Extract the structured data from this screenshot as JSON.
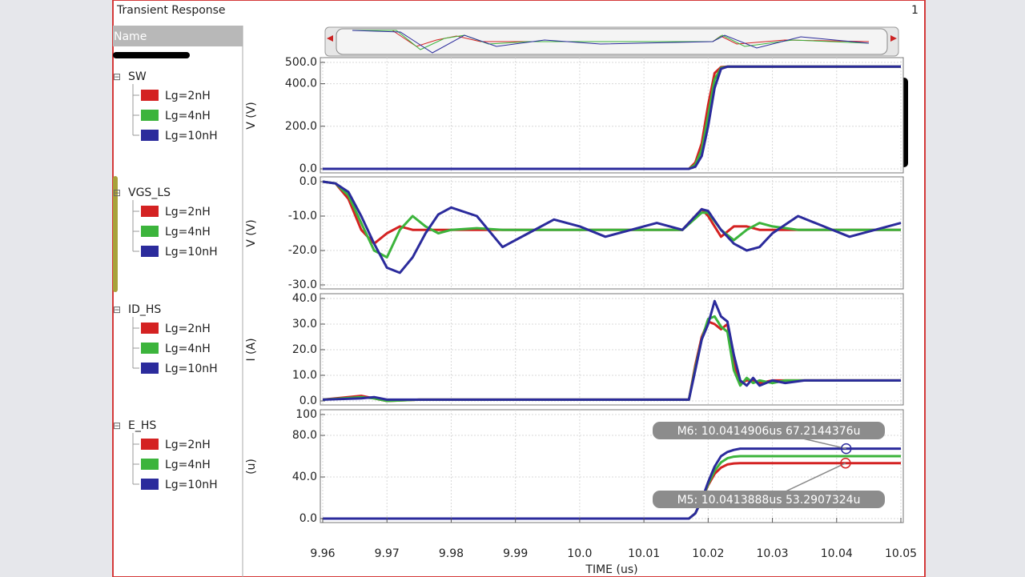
{
  "window": {
    "title": "Transient Response",
    "tab": "1",
    "column_header": "Name"
  },
  "chart_data": [
    {
      "type": "line",
      "signal": "SW",
      "ylabel": "V (V)",
      "ylim": [
        0,
        500
      ],
      "yticks": [
        {
          "value": 0,
          "label": "0.0"
        },
        {
          "value": 200,
          "label": "200.0"
        },
        {
          "value": 400,
          "label": "400.0"
        },
        {
          "value": 500,
          "label": "500.0"
        }
      ],
      "grid": true,
      "x": [
        9.96,
        10.017,
        10.018,
        10.019,
        10.02,
        10.021,
        10.022,
        10.023,
        10.05
      ],
      "series": [
        {
          "name": "Lg=2nH",
          "color": "#d42222",
          "values": [
            0,
            0,
            30,
            120,
            300,
            450,
            478,
            480,
            480
          ]
        },
        {
          "name": "Lg=4nH",
          "color": "#3cb43c",
          "values": [
            0,
            0,
            20,
            90,
            250,
            420,
            474,
            480,
            480
          ]
        },
        {
          "name": "Lg=10nH",
          "color": "#2b2b9c",
          "values": [
            0,
            0,
            10,
            60,
            200,
            380,
            470,
            480,
            480
          ]
        }
      ]
    },
    {
      "type": "line",
      "signal": "VGS_LS",
      "ylabel": "V (V)",
      "ylim": [
        -30,
        0
      ],
      "yticks": [
        {
          "value": 0,
          "label": "0.0"
        },
        {
          "value": -10,
          "label": "-10.0"
        },
        {
          "value": -20,
          "label": "-20.0"
        },
        {
          "value": -30,
          "label": "-30.0"
        }
      ],
      "grid": true,
      "x": [
        9.96,
        9.962,
        9.964,
        9.966,
        9.968,
        9.97,
        9.972,
        9.974,
        9.976,
        9.978,
        9.98,
        9.984,
        9.988,
        9.992,
        9.996,
        10.0,
        10.004,
        10.008,
        10.012,
        10.016,
        10.019,
        10.02,
        10.022,
        10.024,
        10.026,
        10.028,
        10.03,
        10.034,
        10.038,
        10.042,
        10.046,
        10.05
      ],
      "series": [
        {
          "name": "Lg=2nH",
          "color": "#d42222",
          "values": [
            0,
            -0.5,
            -5,
            -14,
            -18,
            -15,
            -13,
            -14,
            -14,
            -14,
            -14,
            -14,
            -14,
            -14,
            -14,
            -14,
            -14,
            -14,
            -14,
            -14,
            -8,
            -10,
            -16,
            -13,
            -13,
            -14,
            -14,
            -14,
            -14,
            -14,
            -14,
            -14
          ]
        },
        {
          "name": "Lg=4nH",
          "color": "#3cb43c",
          "values": [
            0,
            -0.5,
            -4,
            -12,
            -20,
            -22,
            -14,
            -10,
            -13,
            -15,
            -14,
            -13.5,
            -14,
            -14,
            -14,
            -14,
            -14,
            -14,
            -14,
            -14,
            -9,
            -9,
            -14,
            -17,
            -14,
            -12,
            -13,
            -14,
            -14,
            -14,
            -14,
            -14
          ]
        },
        {
          "name": "Lg=10nH",
          "color": "#2b2b9c",
          "values": [
            0,
            -0.5,
            -3,
            -10,
            -18,
            -25,
            -26.5,
            -22,
            -15,
            -9.5,
            -7.5,
            -10,
            -19,
            -15,
            -11,
            -13,
            -16,
            -14,
            -12,
            -14,
            -8,
            -8.5,
            -14,
            -18,
            -20,
            -19,
            -15,
            -10,
            -13,
            -16,
            -14,
            -12
          ]
        }
      ]
    },
    {
      "type": "line",
      "signal": "ID_HS",
      "ylabel": "I (A)",
      "ylim": [
        0,
        40
      ],
      "yticks": [
        {
          "value": 0,
          "label": "0.0"
        },
        {
          "value": 10,
          "label": "10.0"
        },
        {
          "value": 20,
          "label": "20.0"
        },
        {
          "value": 30,
          "label": "30.0"
        },
        {
          "value": 40,
          "label": "40.0"
        }
      ],
      "grid": true,
      "x": [
        9.96,
        9.966,
        9.968,
        9.97,
        9.975,
        10.017,
        10.018,
        10.019,
        10.02,
        10.021,
        10.022,
        10.023,
        10.024,
        10.025,
        10.026,
        10.027,
        10.028,
        10.03,
        10.032,
        10.035,
        10.04,
        10.05
      ],
      "series": [
        {
          "name": "Lg=2nH",
          "color": "#d42222",
          "values": [
            0.5,
            2,
            1,
            0,
            0.5,
            0.5,
            14,
            25,
            31,
            30,
            28,
            30,
            15,
            7,
            8,
            8,
            7,
            8,
            8,
            8,
            8,
            8
          ]
        },
        {
          "name": "Lg=4nH",
          "color": "#3cb43c",
          "values": [
            0.5,
            1.5,
            1,
            0,
            0.5,
            0.5,
            13,
            24,
            32,
            33,
            29,
            27,
            12,
            6,
            9,
            7,
            8,
            7,
            8,
            8,
            8,
            8
          ]
        },
        {
          "name": "Lg=10nH",
          "color": "#2b2b9c",
          "values": [
            0.5,
            1,
            1.5,
            0.5,
            0.5,
            0.5,
            12,
            24,
            30,
            39,
            33,
            31,
            18,
            8,
            6,
            9,
            6,
            8,
            7,
            8,
            8,
            8
          ]
        }
      ]
    },
    {
      "type": "line",
      "signal": "E_HS",
      "ylabel": "(u)",
      "ylim": [
        0,
        100
      ],
      "yticks": [
        {
          "value": 0,
          "label": "0.0"
        },
        {
          "value": 40,
          "label": "40.0"
        },
        {
          "value": 80,
          "label": "80.0"
        },
        100
      ],
      "grid": true,
      "xlabel": "TIME (us)",
      "xlim": [
        9.96,
        10.05
      ],
      "xticks": [
        9.96,
        9.97,
        9.98,
        9.99,
        {
          "value": 10,
          "label": "10.0"
        },
        10.01,
        10.02,
        10.03,
        10.04,
        10.05
      ],
      "x": [
        9.96,
        10.017,
        10.018,
        10.019,
        10.02,
        10.021,
        10.022,
        10.023,
        10.024,
        10.025,
        10.05
      ],
      "series": [
        {
          "name": "Lg=2nH",
          "color": "#d42222",
          "values": [
            0,
            0,
            5,
            18,
            32,
            43,
            49,
            52,
            53,
            53.3,
            53.3
          ]
        },
        {
          "name": "Lg=4nH",
          "color": "#3cb43c",
          "values": [
            0,
            0,
            5,
            18,
            33,
            46,
            54,
            58,
            59.5,
            60,
            60
          ]
        },
        {
          "name": "Lg=10nH",
          "color": "#2b2b9c",
          "values": [
            0,
            0,
            5,
            18,
            35,
            50,
            60,
            64,
            66,
            67.2,
            67.2
          ]
        }
      ],
      "annotations": [
        {
          "text": "M6: 10.0414906us 67.2144376u",
          "x": 10.0414906,
          "y": 67.2144376,
          "color": "#2b2b9c"
        },
        {
          "text": "M5: 10.0413888us 53.2907324u",
          "x": 10.0413888,
          "y": 53.2907324,
          "color": "#d42222"
        }
      ]
    }
  ]
}
